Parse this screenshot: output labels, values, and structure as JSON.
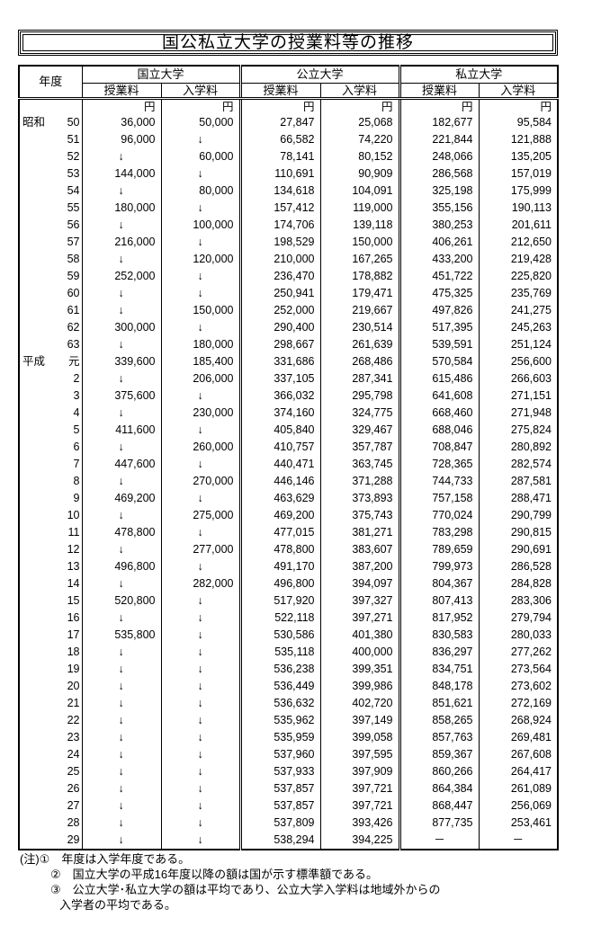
{
  "title": "国公私立大学の授業料等の推移",
  "header": {
    "year": "年度",
    "groups": [
      "国立大学",
      "公立大学",
      "私立大学"
    ],
    "sub": [
      "授業料",
      "入学料",
      "授業料",
      "入学料",
      "授業料",
      "入学料"
    ],
    "unit": "円"
  },
  "rows": [
    [
      "昭和",
      "50",
      "36,000",
      "50,000",
      "27,847",
      "25,068",
      "182,677",
      "95,584"
    ],
    [
      "",
      "51",
      "96,000",
      "↓",
      "66,582",
      "74,220",
      "221,844",
      "121,888"
    ],
    [
      "",
      "52",
      "↓",
      "60,000",
      "78,141",
      "80,152",
      "248,066",
      "135,205"
    ],
    [
      "",
      "53",
      "144,000",
      "↓",
      "110,691",
      "90,909",
      "286,568",
      "157,019"
    ],
    [
      "",
      "54",
      "↓",
      "80,000",
      "134,618",
      "104,091",
      "325,198",
      "175,999"
    ],
    [
      "",
      "55",
      "180,000",
      "↓",
      "157,412",
      "119,000",
      "355,156",
      "190,113"
    ],
    [
      "",
      "56",
      "↓",
      "100,000",
      "174,706",
      "139,118",
      "380,253",
      "201,611"
    ],
    [
      "",
      "57",
      "216,000",
      "↓",
      "198,529",
      "150,000",
      "406,261",
      "212,650"
    ],
    [
      "",
      "58",
      "↓",
      "120,000",
      "210,000",
      "167,265",
      "433,200",
      "219,428"
    ],
    [
      "",
      "59",
      "252,000",
      "↓",
      "236,470",
      "178,882",
      "451,722",
      "225,820"
    ],
    [
      "",
      "60",
      "↓",
      "↓",
      "250,941",
      "179,471",
      "475,325",
      "235,769"
    ],
    [
      "",
      "61",
      "↓",
      "150,000",
      "252,000",
      "219,667",
      "497,826",
      "241,275"
    ],
    [
      "",
      "62",
      "300,000",
      "↓",
      "290,400",
      "230,514",
      "517,395",
      "245,263"
    ],
    [
      "",
      "63",
      "↓",
      "180,000",
      "298,667",
      "261,639",
      "539,591",
      "251,124"
    ],
    [
      "平成",
      "元",
      "339,600",
      "185,400",
      "331,686",
      "268,486",
      "570,584",
      "256,600"
    ],
    [
      "",
      "2",
      "↓",
      "206,000",
      "337,105",
      "287,341",
      "615,486",
      "266,603"
    ],
    [
      "",
      "3",
      "375,600",
      "↓",
      "366,032",
      "295,798",
      "641,608",
      "271,151"
    ],
    [
      "",
      "4",
      "↓",
      "230,000",
      "374,160",
      "324,775",
      "668,460",
      "271,948"
    ],
    [
      "",
      "5",
      "411,600",
      "↓",
      "405,840",
      "329,467",
      "688,046",
      "275,824"
    ],
    [
      "",
      "6",
      "↓",
      "260,000",
      "410,757",
      "357,787",
      "708,847",
      "280,892"
    ],
    [
      "",
      "7",
      "447,600",
      "↓",
      "440,471",
      "363,745",
      "728,365",
      "282,574"
    ],
    [
      "",
      "8",
      "↓",
      "270,000",
      "446,146",
      "371,288",
      "744,733",
      "287,581"
    ],
    [
      "",
      "9",
      "469,200",
      "↓",
      "463,629",
      "373,893",
      "757,158",
      "288,471"
    ],
    [
      "",
      "10",
      "↓",
      "275,000",
      "469,200",
      "375,743",
      "770,024",
      "290,799"
    ],
    [
      "",
      "11",
      "478,800",
      "↓",
      "477,015",
      "381,271",
      "783,298",
      "290,815"
    ],
    [
      "",
      "12",
      "↓",
      "277,000",
      "478,800",
      "383,607",
      "789,659",
      "290,691"
    ],
    [
      "",
      "13",
      "496,800",
      "↓",
      "491,170",
      "387,200",
      "799,973",
      "286,528"
    ],
    [
      "",
      "14",
      "↓",
      "282,000",
      "496,800",
      "394,097",
      "804,367",
      "284,828"
    ],
    [
      "",
      "15",
      "520,800",
      "↓",
      "517,920",
      "397,327",
      "807,413",
      "283,306"
    ],
    [
      "",
      "16",
      "↓",
      "↓",
      "522,118",
      "397,271",
      "817,952",
      "279,794"
    ],
    [
      "",
      "17",
      "535,800",
      "↓",
      "530,586",
      "401,380",
      "830,583",
      "280,033"
    ],
    [
      "",
      "18",
      "↓",
      "↓",
      "535,118",
      "400,000",
      "836,297",
      "277,262"
    ],
    [
      "",
      "19",
      "↓",
      "↓",
      "536,238",
      "399,351",
      "834,751",
      "273,564"
    ],
    [
      "",
      "20",
      "↓",
      "↓",
      "536,449",
      "399,986",
      "848,178",
      "273,602"
    ],
    [
      "",
      "21",
      "↓",
      "↓",
      "536,632",
      "402,720",
      "851,621",
      "272,169"
    ],
    [
      "",
      "22",
      "↓",
      "↓",
      "535,962",
      "397,149",
      "858,265",
      "268,924"
    ],
    [
      "",
      "23",
      "↓",
      "↓",
      "535,959",
      "399,058",
      "857,763",
      "269,481"
    ],
    [
      "",
      "24",
      "↓",
      "↓",
      "537,960",
      "397,595",
      "859,367",
      "267,608"
    ],
    [
      "",
      "25",
      "↓",
      "↓",
      "537,933",
      "397,909",
      "860,266",
      "264,417"
    ],
    [
      "",
      "26",
      "↓",
      "↓",
      "537,857",
      "397,721",
      "864,384",
      "261,089"
    ],
    [
      "",
      "27",
      "↓",
      "↓",
      "537,857",
      "397,721",
      "868,447",
      "256,069"
    ],
    [
      "",
      "28",
      "↓",
      "↓",
      "537,809",
      "393,426",
      "877,735",
      "253,461"
    ],
    [
      "",
      "29",
      "↓",
      "↓",
      "538,294",
      "394,225",
      "－",
      "－"
    ]
  ],
  "notes": [
    "(注)①　年度は入学年度である。",
    "②　国立大学の平成16年度以降の額は国が示す標準額である。",
    "③　公立大学･私立大学の額は平均であり、公立大学入学料は地域外からの",
    "入学者の平均である。"
  ]
}
